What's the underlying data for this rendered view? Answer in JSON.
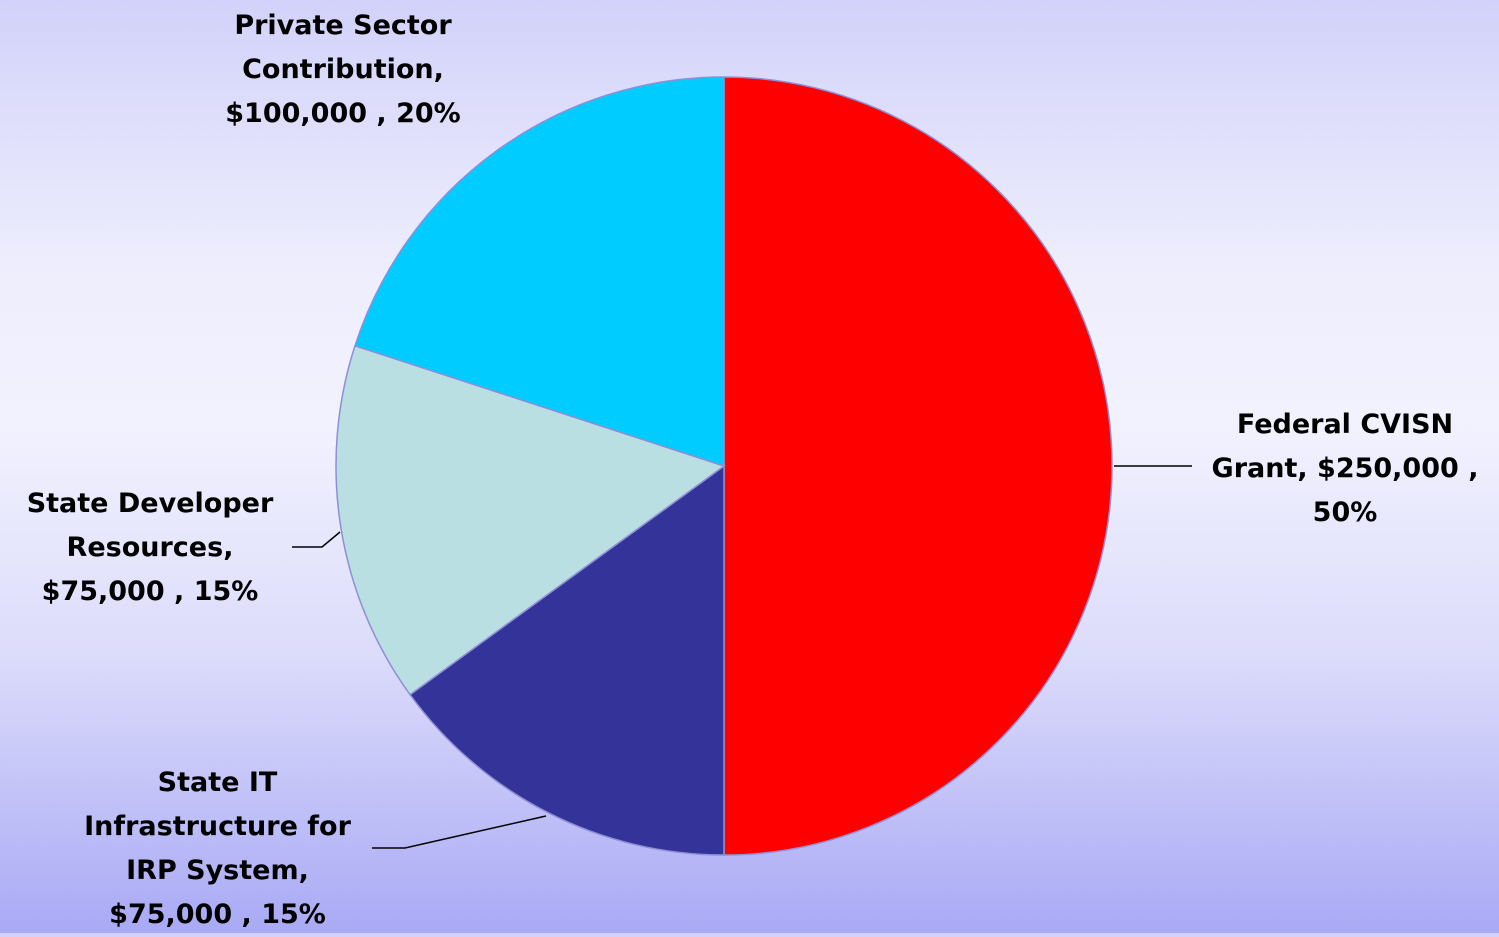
{
  "chart_data": {
    "type": "pie",
    "title": "",
    "unit": "$",
    "slices": [
      {
        "name": "Federal CVISN Grant",
        "value": 250000,
        "percent": 50,
        "color": "#ff0000",
        "label_lines": [
          "Federal CVISN",
          "Grant, $250,000 ,",
          "50%"
        ]
      },
      {
        "name": "State IT Infrastructure for IRP System",
        "value": 75000,
        "percent": 15,
        "color": "#333399",
        "label_lines": [
          "State IT",
          "Infrastructure for",
          "IRP System,",
          "$75,000 , 15%"
        ]
      },
      {
        "name": "State Developer Resources",
        "value": 75000,
        "percent": 15,
        "color": "#b9dfe3",
        "label_lines": [
          "State Developer",
          "Resources,",
          "$75,000 , 15%"
        ]
      },
      {
        "name": "Private Sector Contribution",
        "value": 100000,
        "percent": 20,
        "color": "#00ccff",
        "label_lines": [
          "Private Sector",
          "Contribution,",
          "$100,000 , 20%"
        ]
      }
    ],
    "start_angle_deg": 0,
    "direction": "clockwise",
    "legend": "none"
  }
}
